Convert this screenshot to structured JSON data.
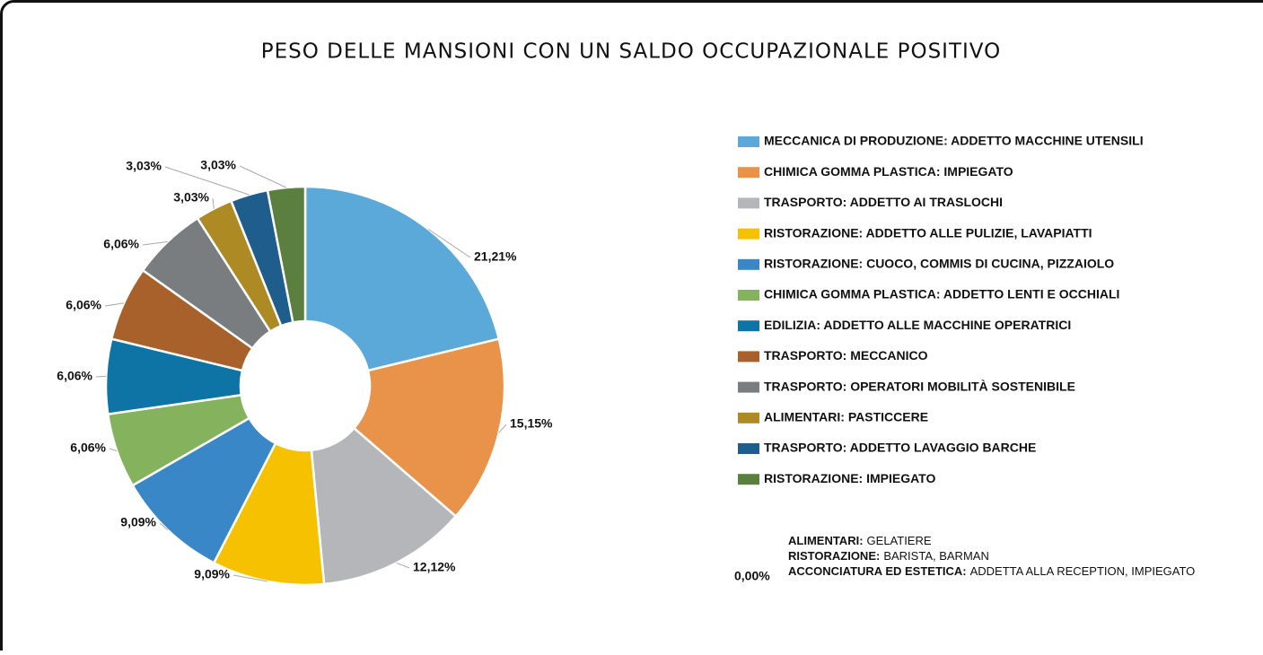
{
  "chart_data": {
    "type": "pie",
    "title": "PESO DELLE MANSIONI CON UN SALDO OCCUPAZIONALE POSITIVO",
    "categories": [
      "MECCANICA DI PRODUZIONE: ADDETTO MACCHINE UTENSILI",
      "CHIMICA GOMMA PLASTICA: IMPIEGATO",
      "TRASPORTO: ADDETTO AI TRASLOCHI",
      "RISTORAZIONE: ADDETTO ALLE PULIZIE, LAVAPIATTI",
      "RISTORAZIONE: CUOCO, COMMIS DI CUCINA, PIZZAIOLO",
      "CHIMICA GOMMA PLASTICA: ADDETTO LENTI E OCCHIALI",
      "EDILIZIA: ADDETTO ALLE MACCHINE OPERATRICI",
      "TRASPORTO: MECCANICO",
      "TRASPORTO: OPERATORI MOBILITÀ SOSTENIBILE",
      "ALIMENTARI: PASTICCERE",
      "TRASPORTO: ADDETTO LAVAGGIO BARCHE",
      "RISTORAZIONE: IMPIEGATO"
    ],
    "values": [
      21.21,
      15.15,
      12.12,
      9.09,
      9.09,
      6.06,
      6.06,
      6.06,
      6.06,
      3.03,
      3.03,
      3.03
    ],
    "value_labels": [
      "21,21%",
      "15,15%",
      "12,12%",
      "9,09%",
      "9,09%",
      "6,06%",
      "6,06%",
      "6,06%",
      "6,06%",
      "3,03%",
      "3,03%",
      "3,03%"
    ],
    "colors": [
      "#5aa9d9",
      "#e8924a",
      "#b5b6ba",
      "#f6c200",
      "#3a87c8",
      "#84b25d",
      "#0e74a6",
      "#a8612b",
      "#7a7d80",
      "#ae8a24",
      "#1f5d8c",
      "#5b7f3f"
    ],
    "donut": true,
    "legend": "right",
    "annotation": {
      "label": "0,00%",
      "items": [
        {
          "sector": "ALIMENTARI:",
          "roles": "GELATIERE"
        },
        {
          "sector": "RISTORAZIONE:",
          "roles": "BARISTA, BARMAN"
        },
        {
          "sector": "ACCONCIATURA ED ESTETICA:",
          "roles": "ADDETTA ALLA RECEPTION, IMPIEGATO"
        }
      ]
    }
  }
}
